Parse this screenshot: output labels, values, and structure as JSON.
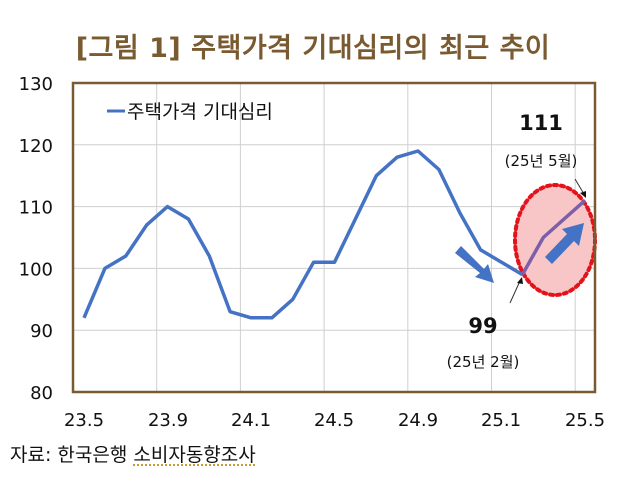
{
  "title": "[그림 1] 주택가격 기대심리의 최근 추이",
  "source": {
    "prefix": "자료: 한국은행 ",
    "name": "소비자동향조사"
  },
  "colors": {
    "title": "#7a5a30",
    "frame": "#7a5a30",
    "line": "#4472c4",
    "highlight_line": "#7b5fa8",
    "ellipse_fill": "#f8c6c6",
    "ellipse_stroke": "#e3121b",
    "grid": "#cfcfcf"
  },
  "annotations": {
    "peak_value": "111",
    "peak_date": "(25년 5월)",
    "low_value": "99",
    "low_date": "(25년 2월)"
  },
  "chart_data": {
    "type": "line",
    "title": "[그림 1] 주택가격 기대심리의 최근 추이",
    "xlabel": "",
    "ylabel": "",
    "ylim": [
      80,
      130
    ],
    "yticks": [
      80,
      90,
      100,
      110,
      120,
      130
    ],
    "xtick_labels": [
      "23.5",
      "23.9",
      "24.1",
      "24.5",
      "24.9",
      "25.1",
      "25.5"
    ],
    "grid": true,
    "legend_position": "top-left inside",
    "x": [
      "23.5",
      "23.6",
      "23.7",
      "23.8",
      "23.9",
      "23.10",
      "23.11",
      "23.12",
      "24.1",
      "24.2",
      "24.3",
      "24.4",
      "24.5",
      "24.6",
      "24.7",
      "24.8",
      "24.9",
      "24.10",
      "24.11",
      "24.12",
      "25.1",
      "25.2",
      "25.3",
      "25.4",
      "25.5"
    ],
    "series": [
      {
        "name": "주택가격 기대심리",
        "values": [
          92,
          100,
          102,
          107,
          110,
          108,
          102,
          93,
          92,
          92,
          95,
          101,
          101,
          108,
          115,
          118,
          119,
          116,
          109,
          103,
          101,
          99,
          105,
          108,
          111
        ]
      }
    ],
    "annotations": [
      {
        "label": "99",
        "sub": "(25년 2월)",
        "x": "25.2",
        "y": 99
      },
      {
        "label": "111",
        "sub": "(25년 5월)",
        "x": "25.5",
        "y": 111
      }
    ]
  }
}
